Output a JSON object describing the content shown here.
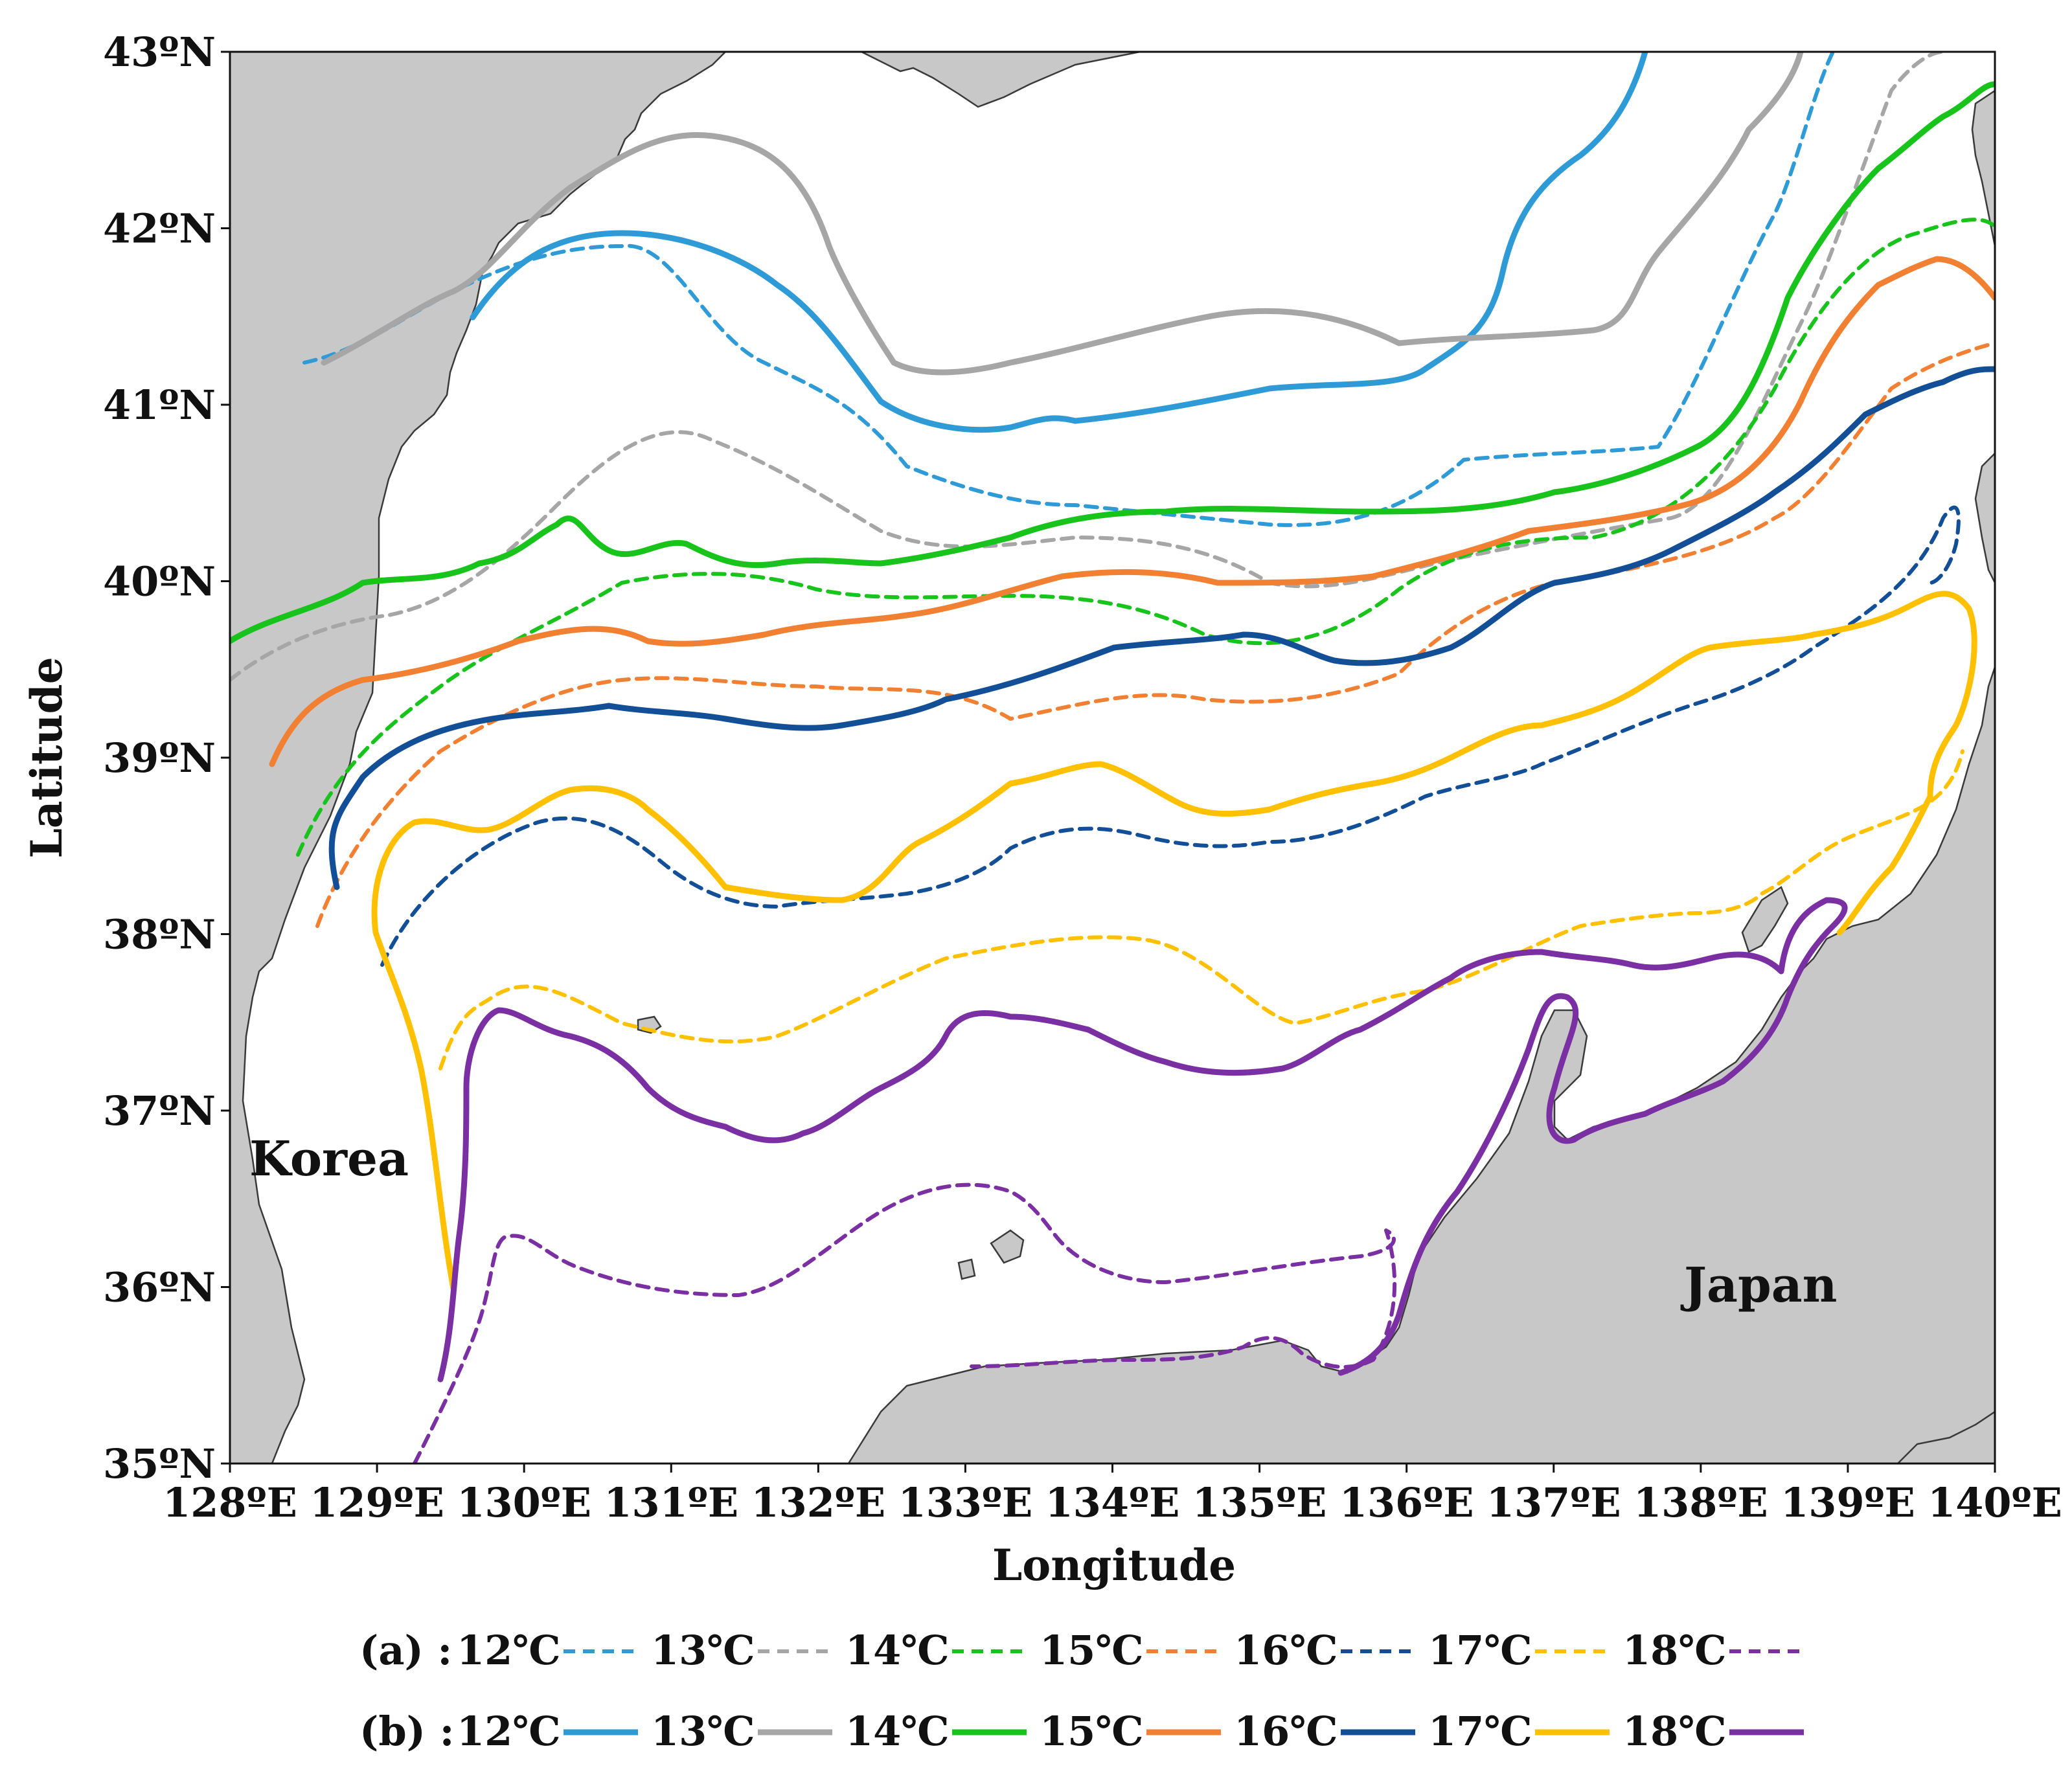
{
  "map": {
    "x_axis_label": "Longitude",
    "y_axis_label": "Latitude",
    "lon_ticks": [
      "128ºE",
      "129ºE",
      "130ºE",
      "131ºE",
      "132ºE",
      "133ºE",
      "134ºE",
      "135ºE",
      "136ºE",
      "137ºE",
      "138ºE",
      "139ºE",
      "140ºE"
    ],
    "lat_ticks": [
      "43ºN",
      "42ºN",
      "41ºN",
      "40ºN",
      "39ºN",
      "38ºN",
      "37ºN",
      "36ºN",
      "35ºN"
    ],
    "regions": {
      "korea": "Korea",
      "japan": "Japan"
    },
    "colors": {
      "12": "#2f9bd6",
      "13": "#a6a6a6",
      "14": "#18c41c",
      "15": "#f28033",
      "16": "#124f96",
      "17": "#ffc000",
      "18": "#7a2fa2"
    }
  },
  "legend": {
    "row_a": {
      "label": "(a) :",
      "entries": [
        {
          "label": "12℃",
          "color": "#2f9bd6"
        },
        {
          "label": "13℃",
          "color": "#a6a6a6"
        },
        {
          "label": "14℃",
          "color": "#18c41c"
        },
        {
          "label": "15℃",
          "color": "#f28033"
        },
        {
          "label": "16℃",
          "color": "#124f96"
        },
        {
          "label": "17℃",
          "color": "#ffc000"
        },
        {
          "label": "18℃",
          "color": "#7a2fa2"
        }
      ]
    },
    "row_b": {
      "label": "(b) :",
      "entries": [
        {
          "label": "12℃",
          "color": "#2f9bd6"
        },
        {
          "label": "13℃",
          "color": "#a6a6a6"
        },
        {
          "label": "14℃",
          "color": "#18c41c"
        },
        {
          "label": "15℃",
          "color": "#f28033"
        },
        {
          "label": "16℃",
          "color": "#124f96"
        },
        {
          "label": "17℃",
          "color": "#ffc000"
        },
        {
          "label": "18℃",
          "color": "#7a2fa2"
        }
      ]
    }
  }
}
